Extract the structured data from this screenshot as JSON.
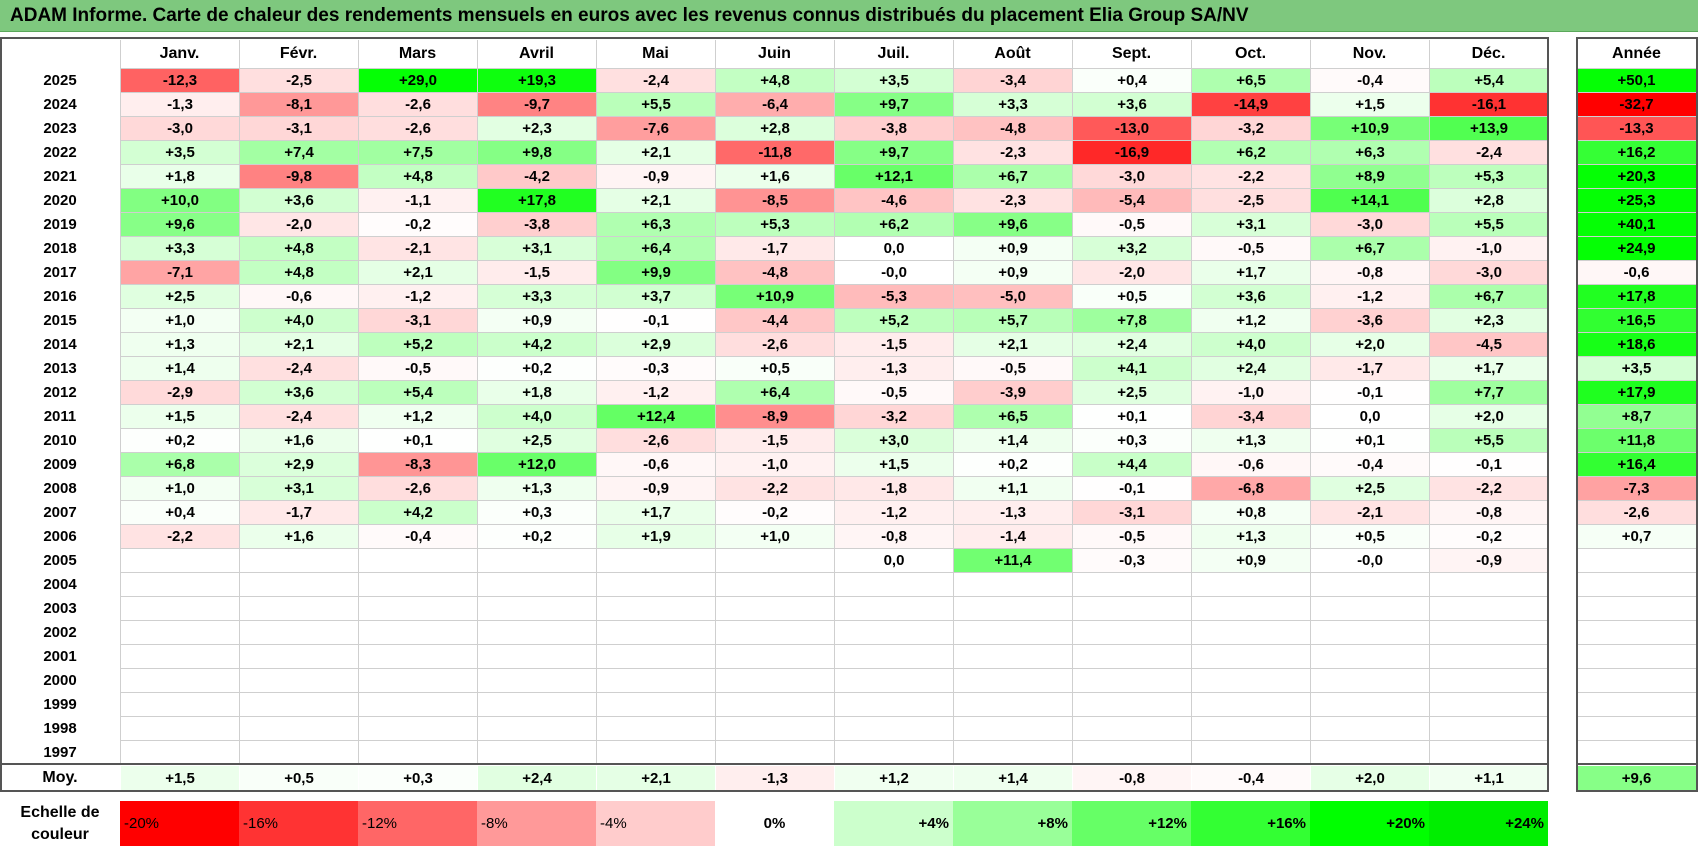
{
  "title": "ADAM Informe. Carte de chaleur des rendements mensuels en euros avec les revenus connus distribués du placement Elia Group SA/NV",
  "chart_data": {
    "type": "heatmap",
    "title": "ADAM Informe. Carte de chaleur des rendements mensuels en euros avec les revenus connus distribués du placement Elia Group SA/NV",
    "columns": [
      "Janv.",
      "Févr.",
      "Mars",
      "Avril",
      "Mai",
      "Juin",
      "Juil.",
      "Août",
      "Sept.",
      "Oct.",
      "Nov.",
      "Déc."
    ],
    "year_column_label": "Année",
    "rows": [
      {
        "year": "2025",
        "values": [
          "-12,3",
          "-2,5",
          "+29,0",
          "+19,3",
          "-2,4",
          "+4,8",
          "+3,5",
          "-3,4",
          "+0,4",
          "+6,5",
          "-0,4",
          "+5,4"
        ],
        "annual": "+50,1"
      },
      {
        "year": "2024",
        "values": [
          "-1,3",
          "-8,1",
          "-2,6",
          "-9,7",
          "+5,5",
          "-6,4",
          "+9,7",
          "+3,3",
          "+3,6",
          "-14,9",
          "+1,5",
          "-16,1"
        ],
        "annual": "-32,7"
      },
      {
        "year": "2023",
        "values": [
          "-3,0",
          "-3,1",
          "-2,6",
          "+2,3",
          "-7,6",
          "+2,8",
          "-3,8",
          "-4,8",
          "-13,0",
          "-3,2",
          "+10,9",
          "+13,9"
        ],
        "annual": "-13,3"
      },
      {
        "year": "2022",
        "values": [
          "+3,5",
          "+7,4",
          "+7,5",
          "+9,8",
          "+2,1",
          "-11,8",
          "+9,7",
          "-2,3",
          "-16,9",
          "+6,2",
          "+6,3",
          "-2,4"
        ],
        "annual": "+16,2"
      },
      {
        "year": "2021",
        "values": [
          "+1,8",
          "-9,8",
          "+4,8",
          "-4,2",
          "-0,9",
          "+1,6",
          "+12,1",
          "+6,7",
          "-3,0",
          "-2,2",
          "+8,9",
          "+5,3"
        ],
        "annual": "+20,3"
      },
      {
        "year": "2020",
        "values": [
          "+10,0",
          "+3,6",
          "-1,1",
          "+17,8",
          "+2,1",
          "-8,5",
          "-4,6",
          "-2,3",
          "-5,4",
          "-2,5",
          "+14,1",
          "+2,8"
        ],
        "annual": "+25,3"
      },
      {
        "year": "2019",
        "values": [
          "+9,6",
          "-2,0",
          "-0,2",
          "-3,8",
          "+6,3",
          "+5,3",
          "+6,2",
          "+9,6",
          "-0,5",
          "+3,1",
          "-3,0",
          "+5,5"
        ],
        "annual": "+40,1"
      },
      {
        "year": "2018",
        "values": [
          "+3,3",
          "+4,8",
          "-2,1",
          "+3,1",
          "+6,4",
          "-1,7",
          "0,0",
          "+0,9",
          "+3,2",
          "-0,5",
          "+6,7",
          "-1,0"
        ],
        "annual": "+24,9"
      },
      {
        "year": "2017",
        "values": [
          "-7,1",
          "+4,8",
          "+2,1",
          "-1,5",
          "+9,9",
          "-4,8",
          "-0,0",
          "+0,9",
          "-2,0",
          "+1,7",
          "-0,8",
          "-3,0"
        ],
        "annual": "-0,6"
      },
      {
        "year": "2016",
        "values": [
          "+2,5",
          "-0,6",
          "-1,2",
          "+3,3",
          "+3,7",
          "+10,9",
          "-5,3",
          "-5,0",
          "+0,5",
          "+3,6",
          "-1,2",
          "+6,7"
        ],
        "annual": "+17,8"
      },
      {
        "year": "2015",
        "values": [
          "+1,0",
          "+4,0",
          "-3,1",
          "+0,9",
          "-0,1",
          "-4,4",
          "+5,2",
          "+5,7",
          "+7,8",
          "+1,2",
          "-3,6",
          "+2,3"
        ],
        "annual": "+16,5"
      },
      {
        "year": "2014",
        "values": [
          "+1,3",
          "+2,1",
          "+5,2",
          "+4,2",
          "+2,9",
          "-2,6",
          "-1,5",
          "+2,1",
          "+2,4",
          "+4,0",
          "+2,0",
          "-4,5"
        ],
        "annual": "+18,6"
      },
      {
        "year": "2013",
        "values": [
          "+1,4",
          "-2,4",
          "-0,5",
          "+0,2",
          "-0,3",
          "+0,5",
          "-1,3",
          "-0,5",
          "+4,1",
          "+2,4",
          "-1,7",
          "+1,7"
        ],
        "annual": "+3,5"
      },
      {
        "year": "2012",
        "values": [
          "-2,9",
          "+3,6",
          "+5,4",
          "+1,8",
          "-1,2",
          "+6,4",
          "-0,5",
          "-3,9",
          "+2,5",
          "-1,0",
          "-0,1",
          "+7,7"
        ],
        "annual": "+17,9"
      },
      {
        "year": "2011",
        "values": [
          "+1,5",
          "-2,4",
          "+1,2",
          "+4,0",
          "+12,4",
          "-8,9",
          "-3,2",
          "+6,5",
          "+0,1",
          "-3,4",
          "0,0",
          "+2,0"
        ],
        "annual": "+8,7"
      },
      {
        "year": "2010",
        "values": [
          "+0,2",
          "+1,6",
          "+0,1",
          "+2,5",
          "-2,6",
          "-1,5",
          "+3,0",
          "+1,4",
          "+0,3",
          "+1,3",
          "+0,1",
          "+5,5"
        ],
        "annual": "+11,8"
      },
      {
        "year": "2009",
        "values": [
          "+6,8",
          "+2,9",
          "-8,3",
          "+12,0",
          "-0,6",
          "-1,0",
          "+1,5",
          "+0,2",
          "+4,4",
          "-0,6",
          "-0,4",
          "-0,1"
        ],
        "annual": "+16,4"
      },
      {
        "year": "2008",
        "values": [
          "+1,0",
          "+3,1",
          "-2,6",
          "+1,3",
          "-0,9",
          "-2,2",
          "-1,8",
          "+1,1",
          "-0,1",
          "-6,8",
          "+2,5",
          "-2,2"
        ],
        "annual": "-7,3"
      },
      {
        "year": "2007",
        "values": [
          "+0,4",
          "-1,7",
          "+4,2",
          "+0,3",
          "+1,7",
          "-0,2",
          "-1,2",
          "-1,3",
          "-3,1",
          "+0,8",
          "-2,1",
          "-0,8"
        ],
        "annual": "-2,6"
      },
      {
        "year": "2006",
        "values": [
          "-2,2",
          "+1,6",
          "-0,4",
          "+0,2",
          "+1,9",
          "+1,0",
          "-0,8",
          "-1,4",
          "-0,5",
          "+1,3",
          "+0,5",
          "-0,2"
        ],
        "annual": "+0,7"
      },
      {
        "year": "2005",
        "values": [
          "",
          "",
          "",
          "",
          "",
          "",
          "0,0",
          "+11,4",
          "-0,3",
          "+0,9",
          "-0,0",
          "-0,9"
        ],
        "annual": ""
      },
      {
        "year": "2004",
        "values": [
          "",
          "",
          "",
          "",
          "",
          "",
          "",
          "",
          "",
          "",
          "",
          ""
        ],
        "annual": ""
      },
      {
        "year": "2003",
        "values": [
          "",
          "",
          "",
          "",
          "",
          "",
          "",
          "",
          "",
          "",
          "",
          ""
        ],
        "annual": ""
      },
      {
        "year": "2002",
        "values": [
          "",
          "",
          "",
          "",
          "",
          "",
          "",
          "",
          "",
          "",
          "",
          ""
        ],
        "annual": ""
      },
      {
        "year": "2001",
        "values": [
          "",
          "",
          "",
          "",
          "",
          "",
          "",
          "",
          "",
          "",
          "",
          ""
        ],
        "annual": ""
      },
      {
        "year": "2000",
        "values": [
          "",
          "",
          "",
          "",
          "",
          "",
          "",
          "",
          "",
          "",
          "",
          ""
        ],
        "annual": ""
      },
      {
        "year": "1999",
        "values": [
          "",
          "",
          "",
          "",
          "",
          "",
          "",
          "",
          "",
          "",
          "",
          ""
        ],
        "annual": ""
      },
      {
        "year": "1998",
        "values": [
          "",
          "",
          "",
          "",
          "",
          "",
          "",
          "",
          "",
          "",
          "",
          ""
        ],
        "annual": ""
      },
      {
        "year": "1997",
        "values": [
          "",
          "",
          "",
          "",
          "",
          "",
          "",
          "",
          "",
          "",
          "",
          ""
        ],
        "annual": ""
      }
    ],
    "average_row": {
      "label": "Moy.",
      "values": [
        "+1,5",
        "+0,5",
        "+0,3",
        "+2,4",
        "+2,1",
        "-1,3",
        "+1,2",
        "+1,4",
        "-0,8",
        "-0,4",
        "+2,0",
        "+1,1"
      ],
      "annual": "+9,6"
    },
    "color_scale": {
      "label": "Echelle de couleur",
      "steps": [
        {
          "label": "-20%",
          "value": -20,
          "color": "#ff0000"
        },
        {
          "label": "-16%",
          "value": -16,
          "color": "#ff3333"
        },
        {
          "label": "-12%",
          "value": -12,
          "color": "#ff6666"
        },
        {
          "label": "-8%",
          "value": -8,
          "color": "#ff9999"
        },
        {
          "label": "-4%",
          "value": -4,
          "color": "#ffcccc"
        },
        {
          "label": "0%",
          "value": 0,
          "color": "#ffffff"
        },
        {
          "label": "+4%",
          "value": 4,
          "color": "#ccffcc"
        },
        {
          "label": "+8%",
          "value": 8,
          "color": "#99ff99"
        },
        {
          "label": "+12%",
          "value": 12,
          "color": "#66ff66"
        },
        {
          "label": "+16%",
          "value": 16,
          "color": "#33ff33"
        },
        {
          "label": "+20%",
          "value": 20,
          "color": "#00ff00"
        },
        {
          "label": "+24%",
          "value": 24,
          "color": "#00ee00"
        }
      ]
    }
  }
}
